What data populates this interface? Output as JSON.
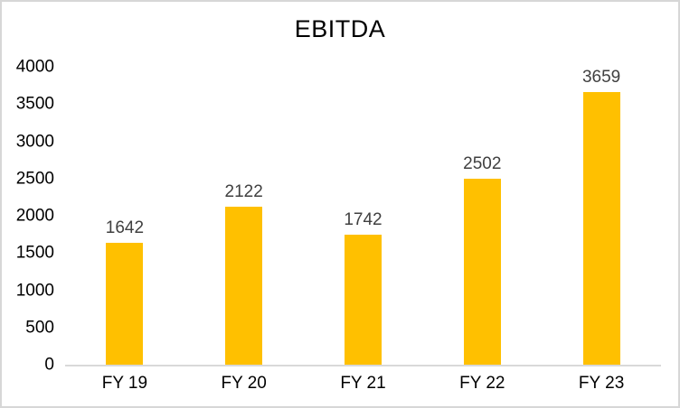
{
  "frame": {
    "background_color": "#ffffff",
    "border_color": "#d7d7d7"
  },
  "chart_data": {
    "type": "bar",
    "title": "EBITDA",
    "title_color": "#000000",
    "categories": [
      "FY 19",
      "FY 20",
      "FY 21",
      "FY 22",
      "FY 23"
    ],
    "values": [
      1642,
      2122,
      1742,
      2502,
      3659
    ],
    "data_labels_shown": true,
    "bar_color": "#FFC000",
    "data_label_color": "#404040",
    "axis_label_color": "#000000",
    "axis_line_color": "#d9d9d9",
    "xlabel": "",
    "ylabel": "",
    "ylim": [
      0,
      4000
    ],
    "yticks": [
      0,
      500,
      1000,
      1500,
      2000,
      2500,
      3000,
      3500,
      4000
    ],
    "grid": false,
    "legend_position": "none"
  }
}
